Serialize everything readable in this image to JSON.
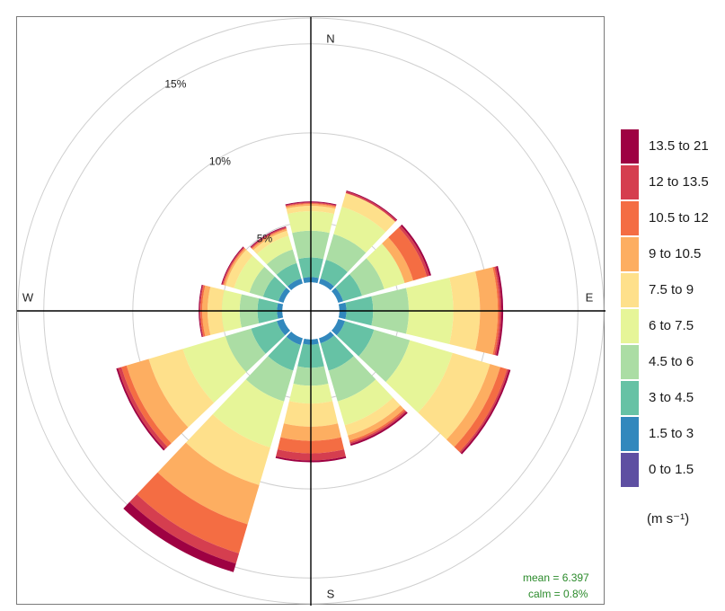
{
  "chart_data": {
    "type": "windrose",
    "direction_labels": [
      "N",
      "E",
      "S",
      "W"
    ],
    "radial_tick_labels": [
      "5%",
      "10%",
      "15%"
    ],
    "radial_ticks": [
      5,
      10,
      15
    ],
    "radial_max": 16.5,
    "calm_radius": 1.6,
    "direction_degrees": [
      0,
      30,
      60,
      90,
      120,
      150,
      180,
      210,
      240,
      270,
      300,
      330
    ],
    "speed_bins": [
      "0 to 1.5",
      "1.5 to 3",
      "3 to 4.5",
      "4.5 to 6",
      "6 to 7.5",
      "7.5 to 9",
      "9 to 10.5",
      "10.5 to 12",
      "12 to 13.5",
      "13.5 to 21"
    ],
    "colors": [
      "#5e4fa2",
      "#3288bd",
      "#66c2a5",
      "#abdda4",
      "#e6f598",
      "#fee08b",
      "#fdae61",
      "#f46d43",
      "#d53e4f",
      "#9e0142"
    ],
    "cumulative_percent": [
      [
        1.6,
        1.9,
        3.0,
        4.5,
        5.6,
        5.9,
        6.0,
        6.05,
        6.1,
        6.15
      ],
      [
        1.6,
        1.9,
        3.0,
        4.5,
        6.1,
        6.9,
        6.5,
        6.8,
        7.0,
        7.05
      ],
      [
        1.6,
        1.9,
        3.0,
        4.3,
        5.5,
        5.5,
        6.0,
        6.8,
        6.95,
        7.05
      ],
      [
        1.6,
        2.0,
        3.5,
        5.5,
        8.0,
        9.5,
        10.5,
        10.6,
        10.7,
        10.8
      ],
      [
        1.6,
        2.0,
        3.7,
        5.8,
        8.3,
        10.5,
        11.1,
        11.5,
        11.6,
        11.7
      ],
      [
        1.6,
        1.9,
        3.5,
        5.3,
        6.7,
        7.3,
        7.6,
        7.7,
        7.8,
        7.9
      ],
      [
        1.6,
        1.9,
        3.2,
        4.2,
        5.2,
        6.5,
        7.3,
        8.0,
        8.4,
        8.5
      ],
      [
        1.6,
        2.0,
        3.5,
        5.3,
        8.0,
        10.2,
        12.5,
        14.2,
        14.8,
        15.3
      ],
      [
        1.6,
        2.0,
        3.5,
        5.0,
        7.5,
        9.5,
        10.8,
        11.1,
        11.3,
        11.4
      ],
      [
        1.6,
        1.9,
        3.0,
        4.0,
        5.0,
        5.8,
        6.1,
        6.2,
        6.25,
        6.3
      ],
      [
        1.6,
        1.9,
        2.8,
        3.6,
        4.5,
        5.0,
        5.1,
        5.15,
        5.2,
        5.25
      ],
      [
        1.6,
        1.9,
        2.8,
        3.6,
        4.4,
        4.7,
        4.8,
        4.85,
        4.9,
        4.95
      ]
    ],
    "legend_title": "(m s⁻¹)",
    "mean_label": "mean = 6.397",
    "calm_label": "calm = 0.8%"
  }
}
